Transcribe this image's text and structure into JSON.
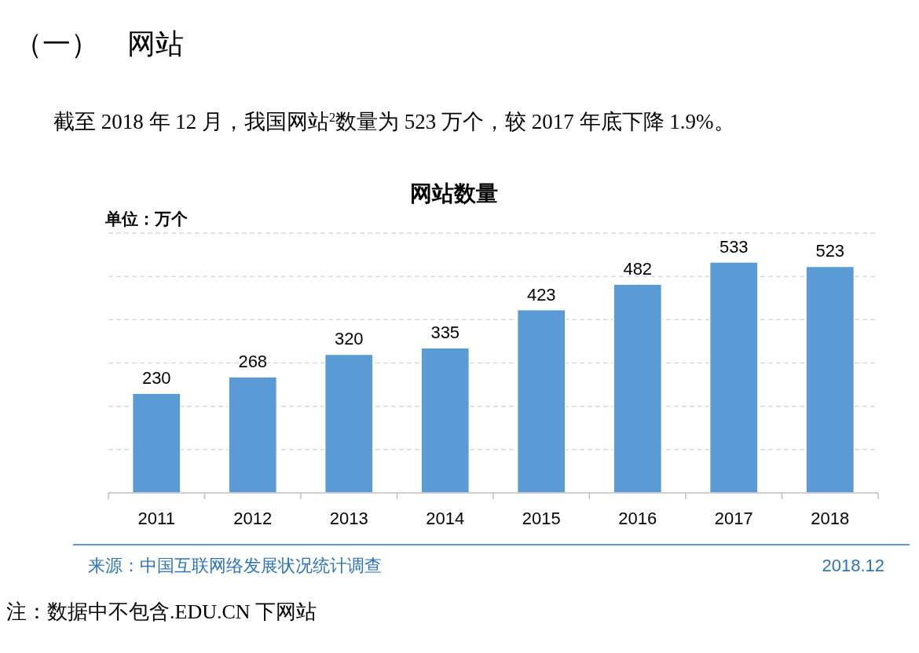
{
  "chart_data": {
    "type": "bar",
    "title": "网站数量",
    "ylabel": "单位：万个",
    "categories": [
      "2011",
      "2012",
      "2013",
      "2014",
      "2015",
      "2016",
      "2017",
      "2018"
    ],
    "values": [
      230,
      268,
      320,
      335,
      423,
      482,
      533,
      523
    ],
    "color": "#5b9bd5",
    "ylim": [
      0,
      600
    ],
    "yticks": [
      {
        "value": 0,
        "label": null
      },
      {
        "value": 100,
        "label": null
      },
      {
        "value": 200,
        "label": null
      },
      {
        "value": 300,
        "label": null
      },
      {
        "value": 400,
        "label": null
      },
      {
        "value": 500,
        "label": null
      },
      {
        "value": 600,
        "label": null
      }
    ],
    "grid": "y",
    "data_labels": true,
    "annotations": [
      "（一）　网站",
      "截至 2018 年 12 月，我国网站$^{2}$数量为 523 万个，较 2017 年底下降 1.9%。",
      "来源：中国互联网络发展状况统计调查",
      "2018.12",
      "注：数据中不包含.EDU.CN 下网站"
    ]
  }
}
